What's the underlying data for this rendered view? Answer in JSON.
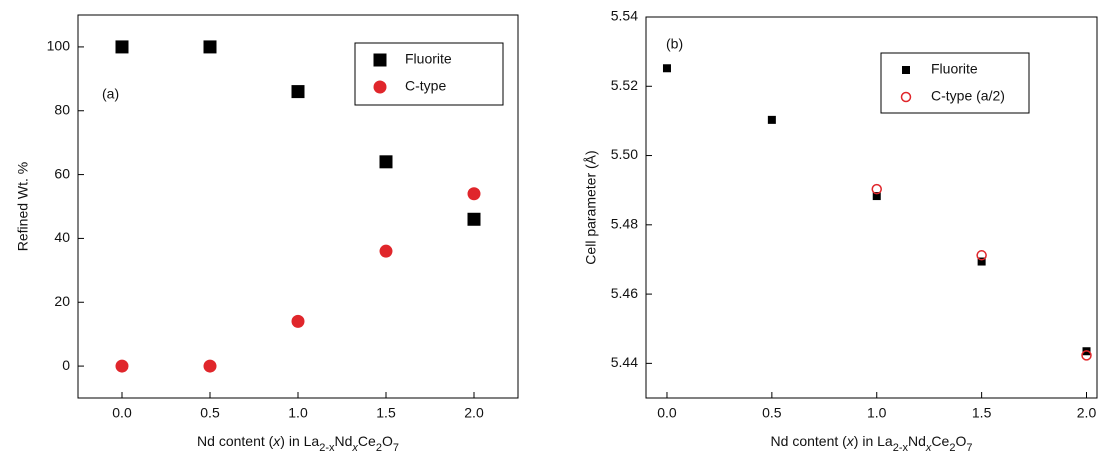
{
  "chart_data": [
    {
      "type": "scatter",
      "annotation": "(a)",
      "xlabel": [
        "Nd content (",
        "x",
        ") in La",
        "2-x",
        "Nd",
        "x",
        "Ce",
        "2",
        "O",
        "7"
      ],
      "ylabel": "Refined Wt. %",
      "xlim": [
        -0.25,
        2.25
      ],
      "ylim": [
        -10,
        110
      ],
      "xticks": [
        {
          "value": 0,
          "label": "0.0"
        },
        {
          "value": 0.5,
          "label": "0.5"
        },
        {
          "value": 1,
          "label": "1.0"
        },
        {
          "value": 1.5,
          "label": "1.5"
        },
        {
          "value": 2,
          "label": "2.0"
        }
      ],
      "yticks": [
        0,
        20,
        40,
        60,
        80,
        100
      ],
      "legend": "upper right",
      "series": [
        {
          "name": "Fluorite",
          "color": "#000000",
          "marker": "square",
          "filled": true,
          "x": [
            0,
            0.5,
            1,
            1.5,
            2
          ],
          "values": [
            100,
            100,
            86,
            64,
            46
          ]
        },
        {
          "name": "C-type",
          "color": "#e0262b",
          "marker": "circle",
          "filled": true,
          "x": [
            0,
            0.5,
            1,
            1.5,
            2
          ],
          "values": [
            0,
            0,
            14,
            36,
            54
          ]
        }
      ]
    },
    {
      "type": "scatter",
      "annotation": "(b)",
      "xlabel": [
        "Nd content (",
        "x",
        ") in La",
        "2-x",
        "Nd",
        "x",
        "Ce",
        "2",
        "O",
        "7"
      ],
      "ylabel": "Cell parameter (Å)",
      "xlim": [
        -0.1,
        2.05
      ],
      "ylim": [
        5.43,
        5.54
      ],
      "xticks": [
        {
          "value": 0,
          "label": "0.0"
        },
        {
          "value": 0.5,
          "label": "0.5"
        },
        {
          "value": 1,
          "label": "1.0"
        },
        {
          "value": 1.5,
          "label": "1.5"
        },
        {
          "value": 2,
          "label": "2.0"
        }
      ],
      "yticks": [
        5.44,
        5.46,
        5.48,
        {
          "value": 5.5,
          "label": "5.50"
        },
        5.52,
        5.54
      ],
      "legend": "upper right",
      "series": [
        {
          "name": "Fluorite",
          "color": "#000000",
          "marker": "square",
          "filled": true,
          "x": [
            0,
            0.5,
            1,
            1.5,
            2
          ],
          "values": [
            5.5252,
            5.5103,
            5.4883,
            5.4694,
            5.4435
          ]
        },
        {
          "name": "C-type (a/2)",
          "color": "#e0262b",
          "marker": "circle",
          "filled": false,
          "x": [
            1,
            1.5,
            2
          ],
          "values": [
            5.4903,
            5.4712,
            5.4423
          ]
        }
      ]
    }
  ]
}
